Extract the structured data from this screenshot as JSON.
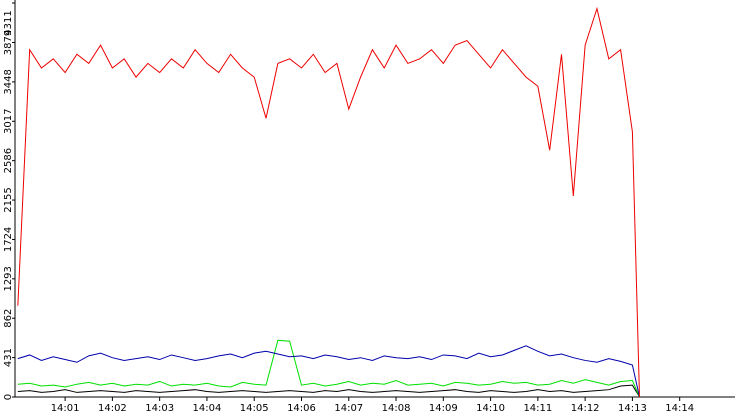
{
  "chart_data": {
    "type": "line",
    "x": [
      0,
      0.25,
      0.5,
      0.75,
      1,
      1.25,
      1.5,
      1.75,
      2,
      2.25,
      2.5,
      2.75,
      3,
      3.25,
      3.5,
      3.75,
      4,
      4.25,
      4.5,
      4.75,
      5,
      5.25,
      5.5,
      5.75,
      6,
      6.25,
      6.5,
      6.75,
      7,
      7.25,
      7.5,
      7.75,
      8,
      8.25,
      8.5,
      8.75,
      9,
      9.25,
      9.5,
      9.75,
      10,
      10.25,
      10.5,
      10.75,
      11,
      11.25,
      11.5,
      11.75,
      12,
      12.25,
      12.5,
      12.75,
      13,
      13.15
    ],
    "series": [
      {
        "color": "#000000",
        "values": [
          60,
          70,
          50,
          60,
          80,
          50,
          60,
          70,
          60,
          50,
          70,
          60,
          50,
          60,
          70,
          80,
          60,
          50,
          60,
          70,
          60,
          50,
          60,
          70,
          60,
          50,
          70,
          60,
          80,
          60,
          50,
          60,
          70,
          60,
          50,
          60,
          70,
          80,
          60,
          50,
          70,
          60,
          50,
          60,
          80,
          60,
          70,
          50,
          60,
          70,
          80,
          120,
          130,
          0
        ]
      },
      {
        "color": "#00e000",
        "values": [
          140,
          150,
          120,
          130,
          110,
          140,
          160,
          130,
          150,
          120,
          140,
          130,
          170,
          120,
          140,
          130,
          150,
          120,
          110,
          160,
          140,
          130,
          620,
          610,
          130,
          150,
          120,
          140,
          170,
          130,
          150,
          140,
          180,
          130,
          140,
          150,
          120,
          160,
          150,
          130,
          140,
          170,
          150,
          160,
          130,
          140,
          180,
          150,
          190,
          160,
          130,
          170,
          180,
          0
        ]
      },
      {
        "color": "#0000aa",
        "values": [
          420,
          460,
          400,
          440,
          410,
          380,
          450,
          480,
          430,
          400,
          420,
          440,
          410,
          460,
          430,
          400,
          420,
          450,
          470,
          430,
          480,
          500,
          470,
          440,
          450,
          420,
          460,
          440,
          410,
          430,
          400,
          450,
          430,
          420,
          440,
          410,
          460,
          450,
          420,
          480,
          440,
          460,
          510,
          560,
          500,
          450,
          470,
          430,
          400,
          380,
          420,
          390,
          350,
          0
        ]
      },
      {
        "color": "#ee0000",
        "values": [
          1000,
          3800,
          3600,
          3700,
          3550,
          3750,
          3650,
          3850,
          3600,
          3700,
          3500,
          3650,
          3550,
          3700,
          3600,
          3800,
          3650,
          3550,
          3750,
          3600,
          3500,
          3050,
          3650,
          3700,
          3600,
          3750,
          3550,
          3650,
          3150,
          3500,
          3800,
          3600,
          3850,
          3650,
          3700,
          3800,
          3650,
          3850,
          3900,
          3750,
          3600,
          3800,
          3650,
          3500,
          3400,
          2700,
          3750,
          2200,
          3850,
          4250,
          3700,
          3800,
          2900,
          0
        ]
      }
    ],
    "xlim": [
      -0.06,
      15.17
    ],
    "xticks": [
      {
        "value": 1,
        "label": "14:01"
      },
      {
        "value": 2,
        "label": "14:02"
      },
      {
        "value": 3,
        "label": "14:03"
      },
      {
        "value": 4,
        "label": "14:04"
      },
      {
        "value": 5,
        "label": "14:05"
      },
      {
        "value": 6,
        "label": "14:06"
      },
      {
        "value": 7,
        "label": "14:07"
      },
      {
        "value": 8,
        "label": "14:08"
      },
      {
        "value": 9,
        "label": "14:09"
      },
      {
        "value": 10,
        "label": "14:10"
      },
      {
        "value": 11,
        "label": "14:11"
      },
      {
        "value": 12,
        "label": "14:12"
      },
      {
        "value": 13,
        "label": "14:13"
      },
      {
        "value": 14,
        "label": "14:14"
      }
    ],
    "ylim": [
      0,
      4311
    ],
    "yticks": [
      0,
      431,
      862,
      1293,
      1724,
      2155,
      2586,
      3017,
      3448,
      3879,
      4311
    ]
  }
}
